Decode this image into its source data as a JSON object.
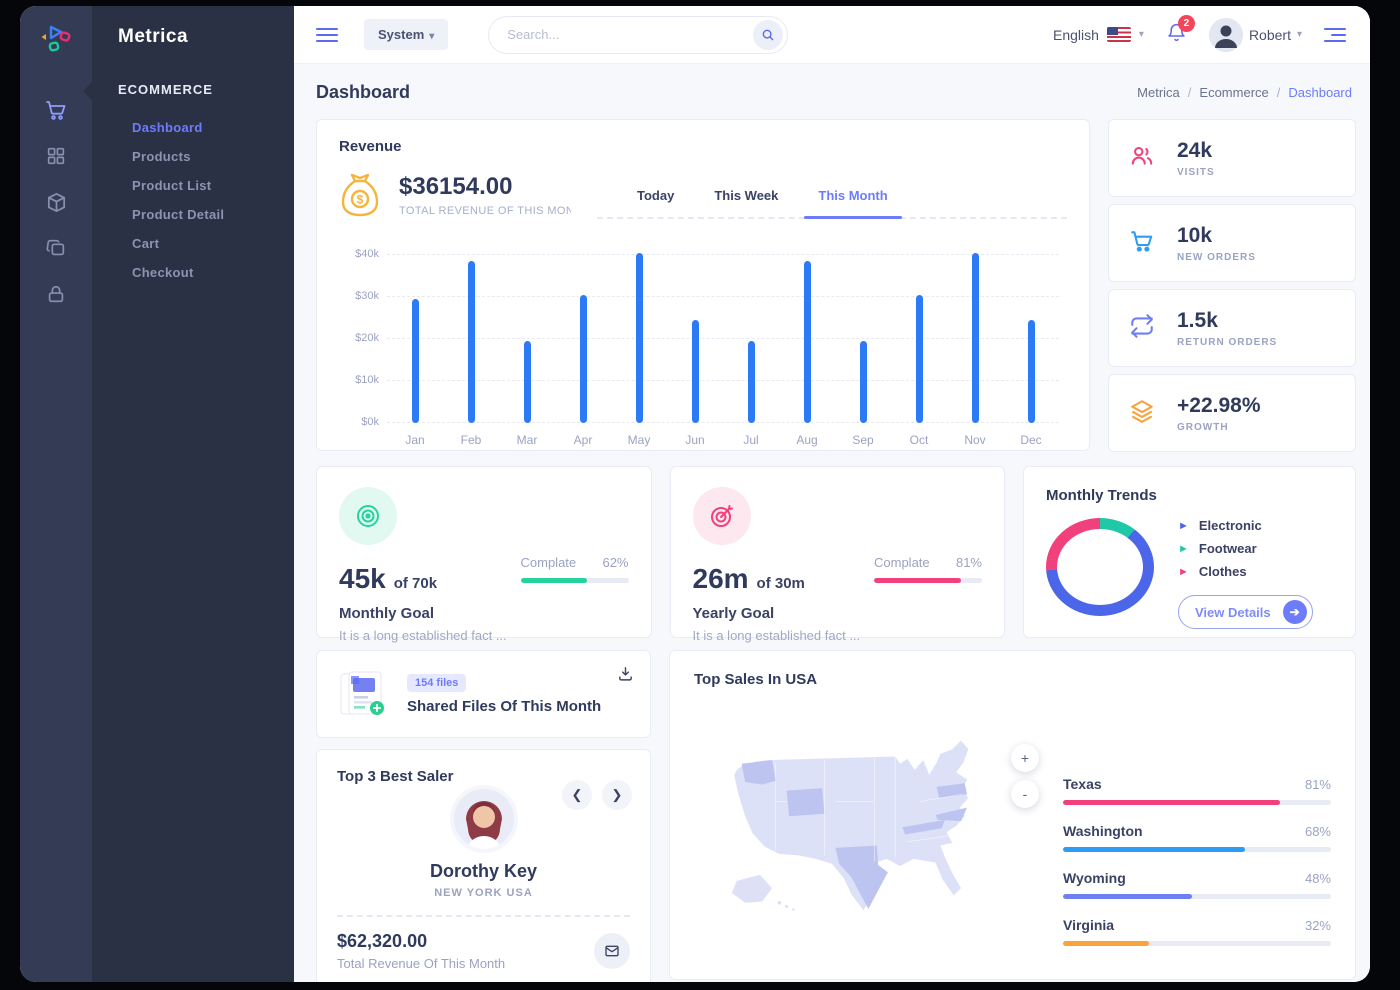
{
  "sidebar": {
    "brand": "Metrica",
    "section": "ECOMMERCE",
    "items": [
      {
        "label": "Dashboard",
        "active": true
      },
      {
        "label": "Products",
        "active": false
      },
      {
        "label": "Product List",
        "active": false
      },
      {
        "label": "Product Detail",
        "active": false
      },
      {
        "label": "Cart",
        "active": false
      },
      {
        "label": "Checkout",
        "active": false
      }
    ]
  },
  "topbar": {
    "system_label": "System",
    "search_placeholder": "Search...",
    "language": "English",
    "notification_count": "2",
    "user_name": "Robert"
  },
  "page": {
    "title": "Dashboard",
    "breadcrumb": [
      "Metrica",
      "Ecommerce",
      "Dashboard"
    ]
  },
  "revenue": {
    "title": "Revenue",
    "amount": "$36154.00",
    "subtitle": "TOTAL REVENUE OF THIS MONTH",
    "tabs": [
      "Today",
      "This Week",
      "This Month"
    ],
    "active_tab": "This Month",
    "chart_data": {
      "type": "bar",
      "categories": [
        "Jan",
        "Feb",
        "Mar",
        "Apr",
        "May",
        "Jun",
        "Jul",
        "Aug",
        "Sep",
        "Oct",
        "Nov",
        "Dec"
      ],
      "values": [
        29.5,
        38.5,
        19.5,
        30.5,
        40.5,
        24.5,
        19.5,
        38.5,
        19.5,
        30.5,
        40.5,
        24.5
      ],
      "unit": "k USD",
      "ytick_labels": [
        "$0k",
        "$10k",
        "$20k",
        "$30k",
        "$40k"
      ],
      "ylim": [
        0,
        40
      ],
      "bar_color": "#2c7bf6",
      "grid": "dashed"
    }
  },
  "stats": [
    {
      "value": "24k",
      "label": "VISITS",
      "icon": "users-icon",
      "color": "#f2407c"
    },
    {
      "value": "10k",
      "label": "NEW ORDERS",
      "icon": "cart-icon",
      "color": "#2d9cf4"
    },
    {
      "value": "1.5k",
      "label": "RETURN ORDERS",
      "icon": "repeat-icon",
      "color": "#6e7ff3"
    },
    {
      "value": "+22.98%",
      "label": "GROWTH",
      "icon": "layers-icon",
      "color": "#f8a33b"
    }
  ],
  "goals": {
    "monthly": {
      "value": "45k",
      "of": "of 70k",
      "title": "Monthly Goal",
      "desc": "It is a long established fact ...",
      "progress_label": "Complate",
      "percent": 62,
      "percent_label": "62%",
      "color": "#26d39e",
      "bubble_bg": "#e2f9f1"
    },
    "yearly": {
      "value": "26m",
      "of": "of 30m",
      "title": "Yearly Goal",
      "desc": "It is a long established fact ...",
      "progress_label": "Complate",
      "percent": 81,
      "percent_label": "81%",
      "color": "#f2407c",
      "bubble_bg": "#fde8f0"
    }
  },
  "trends": {
    "title": "Monthly Trends",
    "legend": [
      {
        "label": "Electronic",
        "color": "#4c66e9"
      },
      {
        "label": "Footwear",
        "color": "#1fc8a7"
      },
      {
        "label": "Clothes",
        "color": "#f2407c"
      }
    ],
    "donut_slices": [
      {
        "name": "Footwear",
        "percent": 12,
        "color": "#1fc8a7"
      },
      {
        "name": "Electronic",
        "percent": 62,
        "color": "#4c66e9"
      },
      {
        "name": "Clothes",
        "percent": 26,
        "color": "#f2407c"
      }
    ],
    "button_label": "View Details"
  },
  "shared_files": {
    "badge": "154 files",
    "title": "Shared Files Of This Month"
  },
  "best_saler": {
    "title": "Top 3 Best Saler",
    "name": "Dorothy Key",
    "location": "NEW YORK USA",
    "amount": "$62,320.00",
    "caption": "Total Revenue Of This Month"
  },
  "usa": {
    "title": "Top Sales In USA",
    "zoom_in": "+",
    "zoom_out": "-",
    "states": [
      {
        "name": "Texas",
        "percent": 81,
        "percent_label": "81%",
        "color": "#f2407c"
      },
      {
        "name": "Washington",
        "percent": 68,
        "percent_label": "68%",
        "color": "#2d9cf4"
      },
      {
        "name": "Wyoming",
        "percent": 48,
        "percent_label": "48%",
        "color": "#6e7ff3"
      },
      {
        "name": "Virginia",
        "percent": 32,
        "percent_label": "32%",
        "color": "#f8a33b"
      }
    ]
  }
}
